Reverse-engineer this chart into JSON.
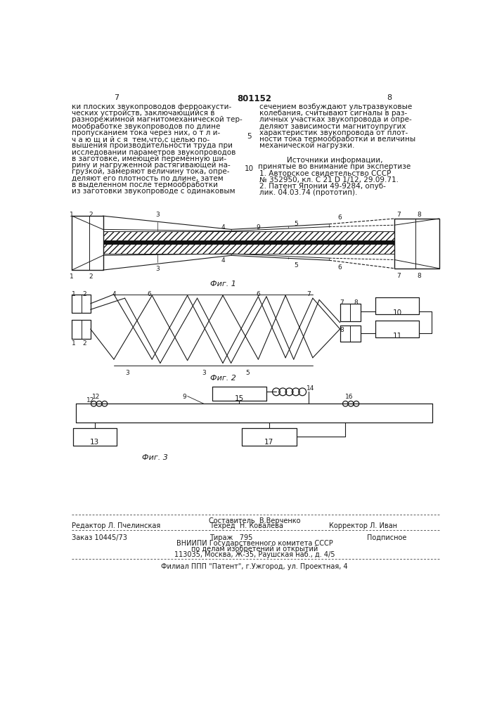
{
  "page_number_left": "7",
  "page_number_center": "801152",
  "page_number_right": "8",
  "col_left_text": [
    "ки плоских звукопроводов ферроакусти-",
    "ческих устройств, заключающийся в",
    "разнорежимной магнитомеханической тер-",
    "мообработке звукопроводов по длине",
    "пропусканием тока через них, о т л и-",
    "ч а ю щ и й с я  тем,что,с целью по-",
    "вышения производительности труда при",
    "исследовании параметров звукопроводов",
    "в заготовке, имеющей переменную ши-",
    "рину и нагруженной растягивающей на-",
    "грузкой, замеряют величину тока, опре-",
    "деляют его плотность по длине, затем",
    "в выделенном после термообработки",
    "из заготовки звукопроводе с одинаковым"
  ],
  "col_right_text": [
    "сечением возбуждают ультразвуковые",
    "колебания, считывают сигналы в раз-",
    "личных участках звукопровода и опре-",
    "деляют зависимости магнитоупругих",
    "характеристик звукопровода от плот-",
    "ности тока термообработки и величины",
    "механической нагрузки."
  ],
  "sources_header": "Источники информации,",
  "sources_subheader": "принятые во внимание при экспертизе",
  "source1": "1. Авторское свидетельство СССР",
  "source1b": "№ 352950, кл. С 21 D 1/12, 29.09.71.",
  "source2": "2. Патент Японии 49-9284, опуб-",
  "source2b": "лик. 04.03.74 (прототип).",
  "fig1_label": "Фиг. 1",
  "fig2_label": "Фиг. 2",
  "fig3_label": "Фиг. 3",
  "footer_editor": "Редактор Л. Пчелинская",
  "footer_composer": "Составитель  В.Верченко",
  "footer_techred": "Техред  Н. Ковалева",
  "footer_corrector": "Корректор Л. Иван",
  "footer_order": "Заказ 10445/73",
  "footer_circulation": "Тираж   795",
  "footer_subscription": "Подписное",
  "footer_org1": "ВНИИПИ Государственного комитета СССР",
  "footer_org2": "по делам изобретений и открытий",
  "footer_address": "113035, Москва, Ж-35, Раушская наб., д. 4/5",
  "footer_branch": "Филиал ППП \"Патент\", г.Ужгород, ул. Проектная, 4",
  "bg_color": "#ffffff",
  "text_color": "#1a1a1a",
  "line_color": "#1a1a1a"
}
